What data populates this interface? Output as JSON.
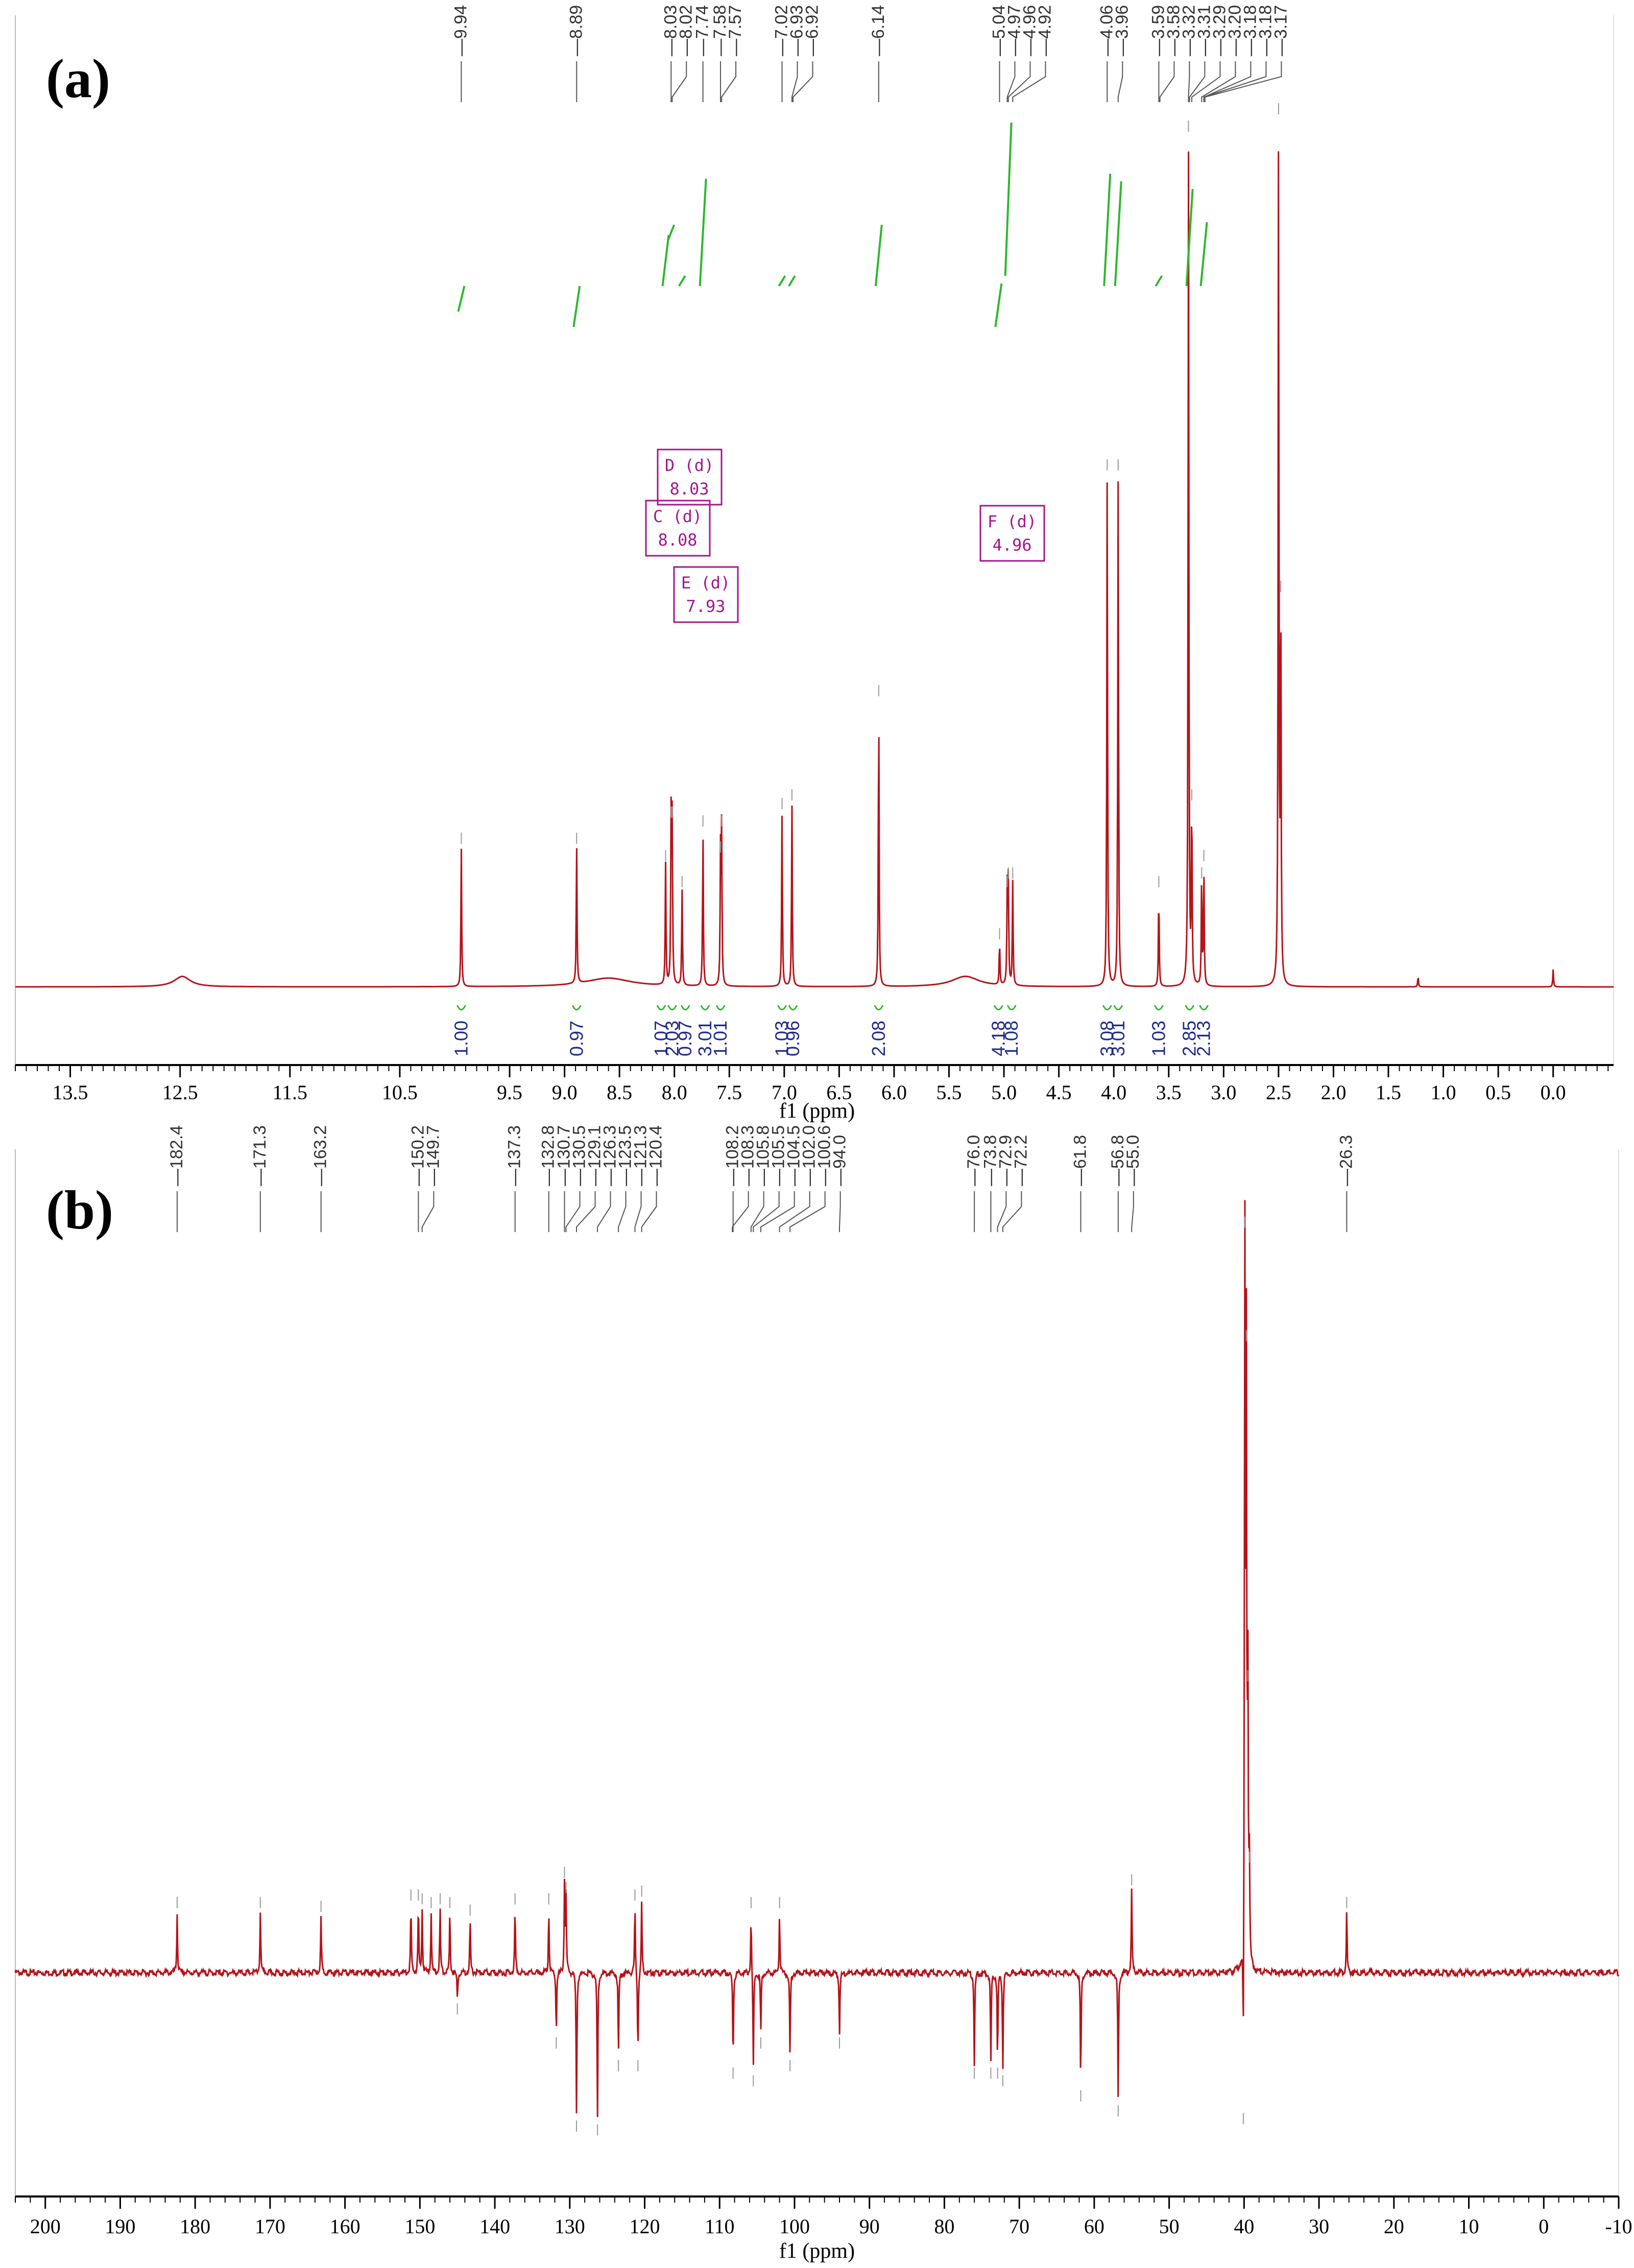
{
  "colors": {
    "spectrum": "#b3141b",
    "integral_curve": "#2eb82e",
    "integral_value": "#1f2a8a",
    "multiplet_box": "#a4168f",
    "peak_label": "#333333"
  },
  "chart_data": [
    {
      "panel": "(a)",
      "type": "line",
      "xlabel": "f1 (ppm)",
      "xlim": [
        14.0,
        -0.55
      ],
      "x_reversed": true,
      "ticks": [
        "13.5",
        "12.5",
        "11.5",
        "10.5",
        "9.5",
        "9.0",
        "8.5",
        "8.0",
        "7.5",
        "7.0",
        "6.5",
        "6.0",
        "5.5",
        "5.0",
        "4.5",
        "4.0",
        "3.5",
        "3.0",
        "2.5",
        "2.0",
        "1.5",
        "1.0",
        "0.5",
        "0.0"
      ],
      "peak_labels": [
        "9.94",
        "8.89",
        "8.03",
        "8.02",
        "7.74",
        "7.58",
        "7.57",
        "7.02",
        "6.93",
        "6.92",
        "6.14",
        "5.04",
        "4.97",
        "4.96",
        "4.92",
        "4.06",
        "3.96",
        "3.59",
        "3.58",
        "3.32",
        "3.31",
        "3.29",
        "3.20",
        "3.18",
        "3.18",
        "3.17"
      ],
      "peaks": [
        {
          "x": 12.48,
          "y": 0.012,
          "w": 0.09
        },
        {
          "x": 9.94,
          "y": 0.16
        },
        {
          "x": 8.89,
          "y": 0.16
        },
        {
          "x": 8.08,
          "y": 0.14
        },
        {
          "x": 8.03,
          "y": 0.19
        },
        {
          "x": 8.02,
          "y": 0.19
        },
        {
          "x": 7.93,
          "y": 0.11
        },
        {
          "x": 7.74,
          "y": 0.18
        },
        {
          "x": 7.58,
          "y": 0.15
        },
        {
          "x": 7.57,
          "y": 0.18
        },
        {
          "x": 7.02,
          "y": 0.2
        },
        {
          "x": 6.93,
          "y": 0.21
        },
        {
          "x": 6.14,
          "y": 0.33
        },
        {
          "x": 5.04,
          "y": 0.05
        },
        {
          "x": 4.97,
          "y": 0.11
        },
        {
          "x": 4.96,
          "y": 0.12
        },
        {
          "x": 4.92,
          "y": 0.12
        },
        {
          "x": 4.06,
          "y": 0.59
        },
        {
          "x": 3.96,
          "y": 0.59
        },
        {
          "x": 3.59,
          "y": 0.11
        },
        {
          "x": 3.32,
          "y": 0.98
        },
        {
          "x": 3.29,
          "y": 0.21
        },
        {
          "x": 3.2,
          "y": 0.12
        },
        {
          "x": 3.18,
          "y": 0.14
        },
        {
          "x": 2.5,
          "y": 1.0
        },
        {
          "x": 2.48,
          "y": 0.45
        },
        {
          "x": 1.23,
          "y": 0.012
        },
        {
          "x": 0.0,
          "y": 0.02
        }
      ],
      "multiplets": [
        {
          "label": "D (d)",
          "value": "8.03"
        },
        {
          "label": "C (d)",
          "value": "8.08"
        },
        {
          "label": "E (d)",
          "value": "7.93"
        },
        {
          "label": "F (d)",
          "value": "4.96"
        }
      ],
      "integrals": [
        {
          "x": 9.94,
          "value": "1.00"
        },
        {
          "x": 8.89,
          "value": "0.97"
        },
        {
          "x": 8.12,
          "value": "1.07"
        },
        {
          "x": 8.02,
          "value": "2.03"
        },
        {
          "x": 7.9,
          "value": "0.97"
        },
        {
          "x": 7.72,
          "value": "3.01"
        },
        {
          "x": 7.58,
          "value": "1.01"
        },
        {
          "x": 7.02,
          "value": "1.03"
        },
        {
          "x": 6.92,
          "value": "0.96"
        },
        {
          "x": 6.14,
          "value": "2.08"
        },
        {
          "x": 5.05,
          "value": "4.18"
        },
        {
          "x": 4.93,
          "value": "1.08"
        },
        {
          "x": 4.06,
          "value": "3.08"
        },
        {
          "x": 3.96,
          "value": "3.01"
        },
        {
          "x": 3.59,
          "value": "1.03"
        },
        {
          "x": 3.31,
          "value": "2.85"
        },
        {
          "x": 3.18,
          "value": "2.13"
        }
      ]
    },
    {
      "panel": "(b)",
      "type": "line",
      "xlabel": "f1 (ppm)",
      "xlim": [
        204,
        -10
      ],
      "x_reversed": true,
      "ticks": [
        "200",
        "190",
        "180",
        "170",
        "160",
        "150",
        "140",
        "130",
        "120",
        "110",
        "100",
        "90",
        "80",
        "70",
        "60",
        "50",
        "40",
        "30",
        "20",
        "10",
        "0",
        "-10"
      ],
      "peak_labels": [
        "182.4",
        "171.3",
        "163.2",
        "150.2",
        "149.7",
        "137.3",
        "132.8",
        "130.7",
        "130.5",
        "129.1",
        "126.3",
        "123.5",
        "121.3",
        "120.4",
        "108.2",
        "108.3",
        "105.8",
        "105.5",
        "104.5",
        "102.0",
        "100.6",
        "94.0",
        "76.0",
        "73.8",
        "72.9",
        "72.2",
        "61.8",
        "56.8",
        "55.0",
        "26.3"
      ],
      "peaks": [
        {
          "x": 182.4,
          "y": 0.08
        },
        {
          "x": 171.3,
          "y": 0.08
        },
        {
          "x": 163.2,
          "y": 0.075
        },
        {
          "x": 151.2,
          "y": 0.09
        },
        {
          "x": 150.2,
          "y": 0.09
        },
        {
          "x": 149.7,
          "y": 0.085
        },
        {
          "x": 148.5,
          "y": 0.08
        },
        {
          "x": 147.3,
          "y": 0.085
        },
        {
          "x": 146.0,
          "y": 0.08
        },
        {
          "x": 145.0,
          "y": -0.035
        },
        {
          "x": 143.3,
          "y": 0.07
        },
        {
          "x": 137.3,
          "y": 0.085
        },
        {
          "x": 132.8,
          "y": 0.085
        },
        {
          "x": 131.8,
          "y": -0.08
        },
        {
          "x": 130.7,
          "y": 0.12
        },
        {
          "x": 130.5,
          "y": 0.1
        },
        {
          "x": 129.1,
          "y": -0.19
        },
        {
          "x": 126.3,
          "y": -0.195
        },
        {
          "x": 123.5,
          "y": -0.11
        },
        {
          "x": 121.3,
          "y": 0.09
        },
        {
          "x": 120.9,
          "y": -0.11
        },
        {
          "x": 120.4,
          "y": 0.095
        },
        {
          "x": 108.2,
          "y": -0.12
        },
        {
          "x": 105.8,
          "y": 0.08
        },
        {
          "x": 105.5,
          "y": -0.13
        },
        {
          "x": 104.5,
          "y": -0.08
        },
        {
          "x": 102.0,
          "y": 0.08
        },
        {
          "x": 100.6,
          "y": -0.11
        },
        {
          "x": 94.0,
          "y": -0.08
        },
        {
          "x": 76.0,
          "y": -0.12
        },
        {
          "x": 73.8,
          "y": -0.12
        },
        {
          "x": 72.9,
          "y": -0.12
        },
        {
          "x": 72.2,
          "y": -0.13
        },
        {
          "x": 61.8,
          "y": -0.15
        },
        {
          "x": 56.8,
          "y": -0.17
        },
        {
          "x": 55.0,
          "y": 0.11
        },
        {
          "x": 40.1,
          "y": -0.18
        },
        {
          "x": 39.9,
          "y": 0.98
        },
        {
          "x": 39.7,
          "y": 0.83
        },
        {
          "x": 39.5,
          "y": 0.38
        },
        {
          "x": 39.3,
          "y": 0.14
        },
        {
          "x": 26.3,
          "y": 0.08
        }
      ]
    }
  ]
}
